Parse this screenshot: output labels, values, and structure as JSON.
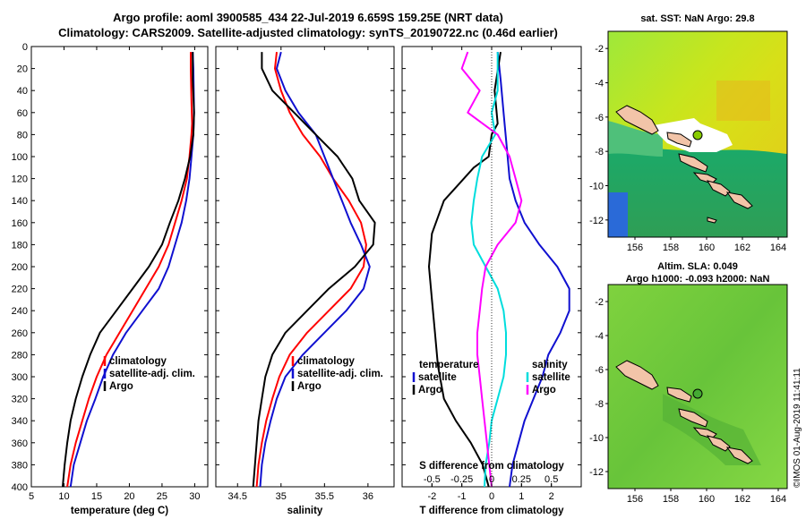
{
  "title": {
    "line1": "Argo profile: aoml 3900585_434 22-Jul-2019 6.659S 159.25E (NRT data)",
    "line2": "Climatology: CARS2009. Satellite-adjusted climatology: synTS_20190722.nc (0.46d earlier)"
  },
  "colors": {
    "climatology": "#ff0000",
    "satellite": "#1010d0",
    "argo": "#000000",
    "t_satellite": "#1010d0",
    "s_satellite": "#00dddd",
    "s_argo": "#ff00ff"
  },
  "credit": "©IMOS 01-Aug-2019 11:41:11",
  "chart_data": [
    {
      "type": "line",
      "xlabel": "temperature (deg C)",
      "xlim": [
        5,
        32
      ],
      "ylim": [
        400,
        0
      ],
      "xticks": [
        5,
        10,
        15,
        20,
        25,
        30
      ],
      "xtick_labels": [
        "5",
        "10",
        "15",
        "20",
        "25",
        "30"
      ],
      "yticks": [
        0,
        20,
        40,
        60,
        80,
        100,
        120,
        140,
        160,
        180,
        200,
        220,
        240,
        260,
        280,
        300,
        320,
        340,
        360,
        380,
        400
      ],
      "ytick_labels": [
        "0",
        "20",
        "40",
        "60",
        "80",
        "100",
        "120",
        "140",
        "160",
        "180",
        "200",
        "220",
        "240",
        "260",
        "280",
        "300",
        "320",
        "340",
        "360",
        "380",
        "400"
      ],
      "legend": [
        {
          "label": "climatology",
          "color": "#ff0000"
        },
        {
          "label": "satellite-adj. clim.",
          "color": "#1010d0"
        },
        {
          "label": "Argo",
          "color": "#000000"
        }
      ],
      "series": [
        {
          "name": "climatology",
          "color": "#ff0000",
          "points": [
            [
              29.4,
              5
            ],
            [
              29.4,
              20
            ],
            [
              29.5,
              50
            ],
            [
              29.6,
              70
            ],
            [
              29.5,
              80
            ],
            [
              29.2,
              100
            ],
            [
              28.8,
              120
            ],
            [
              28.0,
              140
            ],
            [
              27.0,
              160
            ],
            [
              26.0,
              180
            ],
            [
              24.5,
              200
            ],
            [
              22.5,
              220
            ],
            [
              20.5,
              240
            ],
            [
              18.5,
              260
            ],
            [
              16.5,
              280
            ],
            [
              15.0,
              300
            ],
            [
              13.8,
              320
            ],
            [
              12.8,
              340
            ],
            [
              11.8,
              360
            ],
            [
              11.0,
              380
            ],
            [
              10.5,
              400
            ]
          ]
        },
        {
          "name": "satellite-adj. clim.",
          "color": "#1010d0",
          "points": [
            [
              29.7,
              5
            ],
            [
              29.8,
              20
            ],
            [
              29.9,
              60
            ],
            [
              29.8,
              80
            ],
            [
              29.5,
              100
            ],
            [
              29.2,
              120
            ],
            [
              28.7,
              140
            ],
            [
              28.0,
              160
            ],
            [
              27.0,
              180
            ],
            [
              26.0,
              200
            ],
            [
              24.5,
              220
            ],
            [
              22.0,
              240
            ],
            [
              19.5,
              260
            ],
            [
              17.5,
              280
            ],
            [
              16.0,
              300
            ],
            [
              14.8,
              320
            ],
            [
              13.5,
              340
            ],
            [
              12.5,
              360
            ],
            [
              11.5,
              380
            ],
            [
              11.0,
              400
            ]
          ]
        },
        {
          "name": "Argo",
          "color": "#000000",
          "points": [
            [
              29.7,
              5
            ],
            [
              29.7,
              30
            ],
            [
              29.9,
              60
            ],
            [
              29.8,
              80
            ],
            [
              29.3,
              100
            ],
            [
              28.5,
              120
            ],
            [
              27.5,
              140
            ],
            [
              26.2,
              160
            ],
            [
              25.0,
              180
            ],
            [
              23.0,
              200
            ],
            [
              20.5,
              220
            ],
            [
              18.0,
              240
            ],
            [
              15.5,
              260
            ],
            [
              14.0,
              280
            ],
            [
              12.8,
              300
            ],
            [
              11.8,
              320
            ],
            [
              11.0,
              340
            ],
            [
              10.5,
              360
            ],
            [
              10.1,
              380
            ],
            [
              9.8,
              400
            ]
          ]
        }
      ]
    },
    {
      "type": "line",
      "xlabel": "salinity",
      "xlim": [
        34.25,
        36.3
      ],
      "ylim": [
        400,
        0
      ],
      "xticks": [
        34.5,
        35,
        35.5,
        36
      ],
      "xtick_labels": [
        "34.5",
        "35",
        "35.5",
        "36"
      ],
      "legend": [
        {
          "label": "climatology",
          "color": "#ff0000"
        },
        {
          "label": "satellite-adj. clim.",
          "color": "#1010d0"
        },
        {
          "label": "Argo",
          "color": "#000000"
        }
      ],
      "series": [
        {
          "name": "climatology",
          "color": "#ff0000",
          "points": [
            [
              34.95,
              5
            ],
            [
              34.93,
              20
            ],
            [
              35.0,
              40
            ],
            [
              35.1,
              60
            ],
            [
              35.25,
              80
            ],
            [
              35.45,
              100
            ],
            [
              35.6,
              120
            ],
            [
              35.78,
              140
            ],
            [
              35.92,
              160
            ],
            [
              35.98,
              180
            ],
            [
              35.95,
              200
            ],
            [
              35.8,
              220
            ],
            [
              35.55,
              240
            ],
            [
              35.3,
              260
            ],
            [
              35.1,
              280
            ],
            [
              34.98,
              300
            ],
            [
              34.9,
              320
            ],
            [
              34.83,
              340
            ],
            [
              34.78,
              360
            ],
            [
              34.74,
              380
            ],
            [
              34.72,
              400
            ]
          ]
        },
        {
          "name": "satellite-adj. clim.",
          "color": "#1010d0",
          "points": [
            [
              35.0,
              5
            ],
            [
              34.95,
              20
            ],
            [
              35.05,
              40
            ],
            [
              35.2,
              60
            ],
            [
              35.4,
              80
            ],
            [
              35.5,
              100
            ],
            [
              35.6,
              120
            ],
            [
              35.7,
              140
            ],
            [
              35.8,
              160
            ],
            [
              35.92,
              180
            ],
            [
              36.02,
              200
            ],
            [
              35.95,
              220
            ],
            [
              35.75,
              240
            ],
            [
              35.5,
              260
            ],
            [
              35.25,
              280
            ],
            [
              35.05,
              300
            ],
            [
              34.95,
              320
            ],
            [
              34.88,
              340
            ],
            [
              34.82,
              360
            ],
            [
              34.78,
              380
            ],
            [
              34.76,
              400
            ]
          ]
        },
        {
          "name": "Argo",
          "color": "#000000",
          "points": [
            [
              34.78,
              5
            ],
            [
              34.78,
              20
            ],
            [
              34.9,
              40
            ],
            [
              35.15,
              60
            ],
            [
              35.4,
              80
            ],
            [
              35.65,
              100
            ],
            [
              35.82,
              120
            ],
            [
              35.9,
              140
            ],
            [
              36.08,
              160
            ],
            [
              36.06,
              180
            ],
            [
              35.85,
              200
            ],
            [
              35.55,
              220
            ],
            [
              35.3,
              240
            ],
            [
              35.05,
              260
            ],
            [
              34.9,
              280
            ],
            [
              34.82,
              300
            ],
            [
              34.78,
              320
            ],
            [
              34.74,
              340
            ],
            [
              34.72,
              360
            ],
            [
              34.7,
              380
            ],
            [
              34.68,
              400
            ]
          ]
        }
      ]
    },
    {
      "type": "line",
      "xlabel": "T difference from climatology",
      "top_label": "S difference from climatology",
      "xlim": [
        -3,
        3
      ],
      "ylim": [
        400,
        0
      ],
      "xticks": [
        -2,
        -1,
        0,
        1,
        2
      ],
      "xtick_labels": [
        "-2",
        "-1",
        "0",
        "1",
        "2"
      ],
      "s_xlim": [
        -0.75,
        0.75
      ],
      "s_xticks": [
        -0.5,
        -0.25,
        0,
        0.25,
        0.5
      ],
      "s_xtick_labels": [
        "-0.5",
        "-0.25",
        "0",
        "0.25",
        "0.5"
      ],
      "legend_temperature": {
        "heading": "temperature",
        "items": [
          {
            "label": "satellite",
            "color": "#1010d0"
          },
          {
            "label": "Argo",
            "color": "#000000"
          }
        ]
      },
      "legend_salinity": {
        "heading": "salinity",
        "items": [
          {
            "label": "satellite",
            "color": "#00dddd"
          },
          {
            "label": "Argo",
            "color": "#ff00ff"
          }
        ]
      },
      "series": [
        {
          "name": "T satellite",
          "color": "#1010d0",
          "units": "T",
          "points": [
            [
              0.2,
              5
            ],
            [
              0.3,
              30
            ],
            [
              0.4,
              60
            ],
            [
              0.5,
              90
            ],
            [
              0.6,
              120
            ],
            [
              0.8,
              140
            ],
            [
              1.1,
              160
            ],
            [
              1.6,
              180
            ],
            [
              2.2,
              200
            ],
            [
              2.6,
              220
            ],
            [
              2.6,
              240
            ],
            [
              2.3,
              260
            ],
            [
              1.9,
              280
            ],
            [
              1.7,
              300
            ],
            [
              1.4,
              320
            ],
            [
              1.1,
              340
            ],
            [
              0.9,
              360
            ],
            [
              0.7,
              380
            ],
            [
              0.6,
              400
            ]
          ]
        },
        {
          "name": "T Argo",
          "color": "#000000",
          "units": "T",
          "points": [
            [
              0.3,
              5
            ],
            [
              0.1,
              40
            ],
            [
              0.2,
              70
            ],
            [
              0.0,
              80
            ],
            [
              -0.1,
              100
            ],
            [
              -0.6,
              110
            ],
            [
              -1.6,
              140
            ],
            [
              -2.0,
              170
            ],
            [
              -2.1,
              200
            ],
            [
              -2.0,
              230
            ],
            [
              -1.9,
              260
            ],
            [
              -1.8,
              290
            ],
            [
              -1.6,
              320
            ],
            [
              -1.2,
              340
            ],
            [
              -0.7,
              360
            ],
            [
              -0.3,
              380
            ],
            [
              -0.1,
              400
            ]
          ]
        },
        {
          "name": "S satellite",
          "color": "#00dddd",
          "units": "S",
          "points": [
            [
              0.05,
              5
            ],
            [
              0.05,
              40
            ],
            [
              0.0,
              60
            ],
            [
              0.03,
              80
            ],
            [
              -0.08,
              100
            ],
            [
              -0.12,
              120
            ],
            [
              -0.15,
              140
            ],
            [
              -0.17,
              160
            ],
            [
              -0.15,
              180
            ],
            [
              -0.05,
              200
            ],
            [
              0.05,
              220
            ],
            [
              0.1,
              240
            ],
            [
              0.12,
              260
            ],
            [
              0.12,
              280
            ],
            [
              0.1,
              300
            ],
            [
              0.05,
              320
            ],
            [
              0.0,
              340
            ],
            [
              -0.02,
              360
            ],
            [
              -0.05,
              380
            ],
            [
              -0.06,
              400
            ]
          ]
        },
        {
          "name": "S Argo",
          "color": "#ff00ff",
          "units": "S",
          "points": [
            [
              -0.2,
              5
            ],
            [
              -0.25,
              20
            ],
            [
              -0.1,
              40
            ],
            [
              -0.2,
              60
            ],
            [
              0.05,
              80
            ],
            [
              0.15,
              100
            ],
            [
              0.2,
              120
            ],
            [
              0.25,
              140
            ],
            [
              0.2,
              160
            ],
            [
              0.05,
              180
            ],
            [
              -0.05,
              200
            ],
            [
              -0.08,
              220
            ],
            [
              -0.1,
              240
            ],
            [
              -0.12,
              260
            ],
            [
              -0.12,
              280
            ],
            [
              -0.1,
              300
            ],
            [
              -0.08,
              320
            ],
            [
              -0.06,
              340
            ],
            [
              -0.04,
              360
            ],
            [
              -0.02,
              380
            ],
            [
              0.0,
              400
            ]
          ]
        }
      ]
    }
  ],
  "maps": [
    {
      "title": "sat. SST: NaN Argo: 29.8",
      "xticks": [
        156,
        158,
        160,
        162,
        164
      ],
      "xtick_labels": [
        "156",
        "158",
        "160",
        "162",
        "164"
      ],
      "yticks": [
        -2,
        -4,
        -6,
        -8,
        -10,
        -12
      ],
      "ytick_labels": [
        "-2",
        "-4",
        "-6",
        "-8",
        "-10",
        "-12"
      ],
      "float_color": "#88cc00"
    },
    {
      "title_line1": "Altim. SLA: 0.049",
      "title_line2": "Argo h1000: -0.093 h2000: NaN",
      "xticks": [
        156,
        158,
        160,
        162,
        164
      ],
      "xtick_labels": [
        "156",
        "158",
        "160",
        "162",
        "164"
      ],
      "yticks": [
        -2,
        -4,
        -6,
        -8,
        -10,
        -12
      ],
      "ytick_labels": [
        "-2",
        "-4",
        "-6",
        "-8",
        "-10",
        "-12"
      ],
      "float_color": "#44aa33"
    }
  ]
}
